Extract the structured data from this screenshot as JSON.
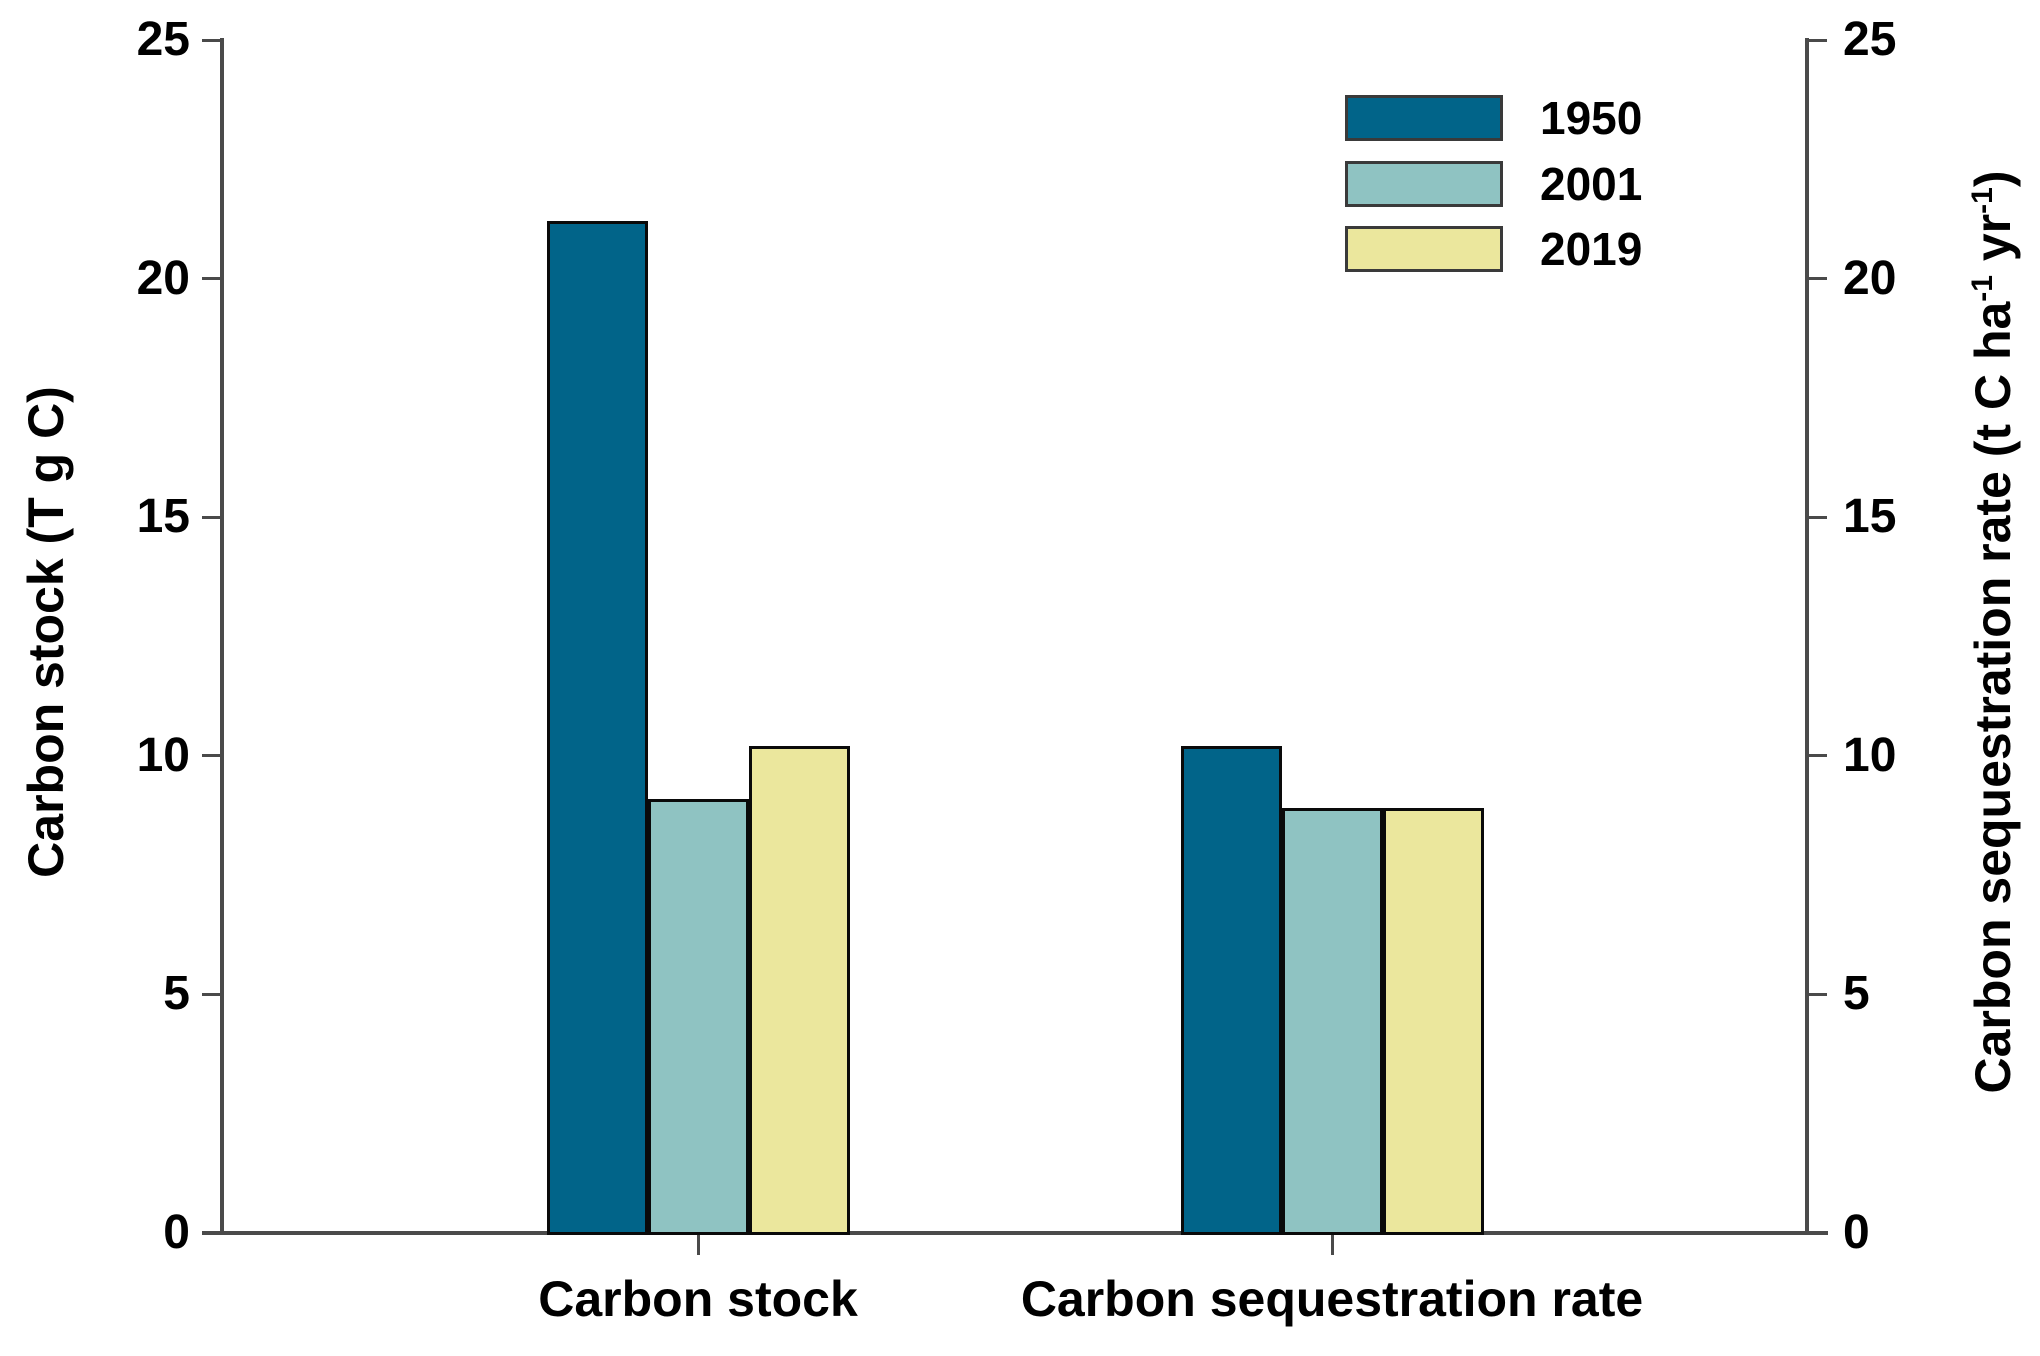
{
  "figure": {
    "background": "#ffffff",
    "axis_color": "#4a4a4a",
    "bar_border_color": "#0a0a0a",
    "text_color": "#000000"
  },
  "left_axis": {
    "label": "Carbon stock (T g C)"
  },
  "right_axis": {
    "label_full": "Carbon sequestration rate (t C ha⁻¹ yr⁻¹)",
    "parts": [
      "Carbon sequestration rate (t C ha",
      "-1",
      " yr",
      "-1",
      ")"
    ]
  },
  "chart_data": {
    "type": "bar",
    "categories": [
      "Carbon stock",
      "Carbon sequestration rate"
    ],
    "series": [
      {
        "name": "1950",
        "color": "#016489",
        "values": [
          21.2,
          10.2
        ]
      },
      {
        "name": "2001",
        "color": "#8fc3c2",
        "values": [
          9.1,
          8.9
        ]
      },
      {
        "name": "2019",
        "color": "#ebe79d",
        "values": [
          10.2,
          8.9
        ]
      }
    ],
    "ylabel_left": "Carbon stock (T g C)",
    "ylabel_right": "Carbon sequestration rate (t C ha⁻¹ yr⁻¹)",
    "xlabel": "",
    "title": "",
    "ylim": [
      0,
      25
    ],
    "yticks": [
      0,
      5,
      10,
      15,
      20,
      25
    ],
    "grid": false,
    "legend_position": "upper right"
  }
}
